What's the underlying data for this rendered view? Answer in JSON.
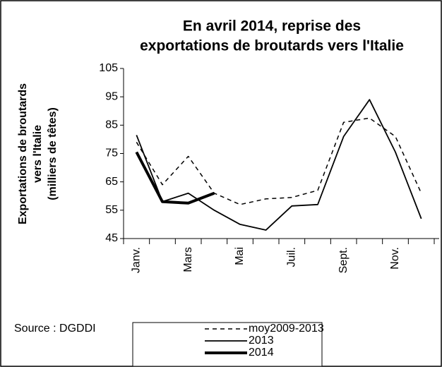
{
  "chart_data": {
    "type": "line",
    "title": [
      "En  avril 2014, reprise des",
      "exportations de broutards vers l'Italie"
    ],
    "ylabel": [
      "Exportations de broutards",
      "vers l'Italie",
      "(milliers de têtes)"
    ],
    "annotation": "Source : DGDDI",
    "categories": [
      "Janv.",
      null,
      "Mars",
      null,
      "Mai",
      null,
      "Juil.",
      null,
      "Sept.",
      null,
      "Nov.",
      null
    ],
    "series": [
      {
        "name": "moy2009-2013",
        "color": "#000000",
        "line_style": "dashed",
        "values": [
          79,
          64,
          74,
          61,
          57,
          59,
          59.5,
          62,
          86,
          87.5,
          81,
          61
        ]
      },
      {
        "name": "2013",
        "color": "#000000",
        "line_style": "solid",
        "values": [
          81.5,
          58,
          61,
          55,
          50,
          48,
          56.5,
          57,
          81,
          94,
          75.5,
          52
        ]
      },
      {
        "name": "2014",
        "color": "#000000",
        "line_style": "thick",
        "values": [
          75.5,
          58,
          57.5,
          61,
          null,
          null,
          null,
          null,
          null,
          null,
          null,
          null
        ]
      }
    ],
    "ylim": [
      45,
      105
    ],
    "yticks": [
      45,
      55,
      65,
      75,
      85,
      95,
      105
    ],
    "grid": false,
    "legend": "bottom"
  }
}
